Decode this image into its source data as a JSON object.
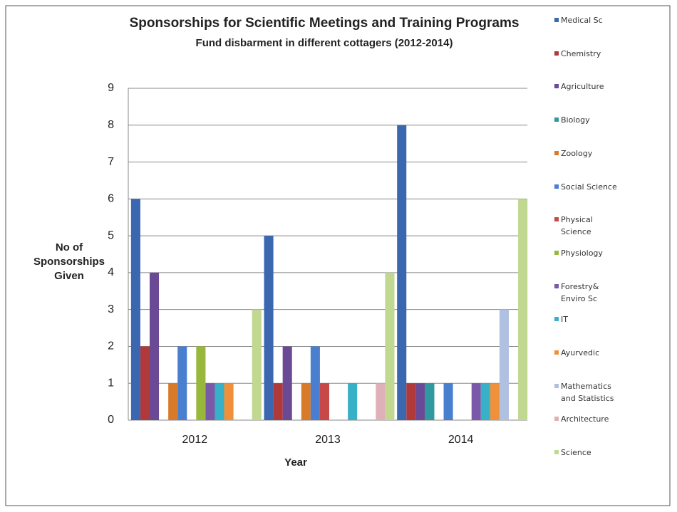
{
  "chart_data": {
    "type": "bar",
    "title": "Sponsorships for Scientific Meetings and Training Programs",
    "subtitle": "Fund disbarment  in different cottagers (2012-2014)",
    "x_label": "Year",
    "y_label": "No of Sponsorships Given",
    "categories": [
      "2012",
      "2013",
      "2014"
    ],
    "ylim": [
      0,
      9
    ],
    "yticks": [
      0,
      1,
      2,
      3,
      4,
      5,
      6,
      7,
      8,
      9
    ],
    "grid": true,
    "legend": "right",
    "series": [
      {
        "name": "Medical Sc",
        "color": "#3a67b0",
        "values": [
          6,
          5,
          8
        ]
      },
      {
        "name": "Chemistry",
        "color": "#b03a3a",
        "values": [
          2,
          1,
          1
        ]
      },
      {
        "name": "Agriculture",
        "color": "#6a4a94",
        "values": [
          4,
          2,
          1
        ]
      },
      {
        "name": "Biology",
        "color": "#2e9aa0",
        "values": [
          0,
          0,
          1
        ]
      },
      {
        "name": "Zoology",
        "color": "#d97a2a",
        "values": [
          1,
          1,
          0
        ]
      },
      {
        "name": "Social Science",
        "color": "#4a7fd0",
        "values": [
          2,
          2,
          1
        ]
      },
      {
        "name": "Physical Science",
        "color": "#c84848",
        "values": [
          0,
          1,
          0
        ]
      },
      {
        "name": "Physiology",
        "color": "#98b83c",
        "values": [
          2,
          0,
          0
        ]
      },
      {
        "name": "Forestry& Enviro Sc",
        "color": "#7a5aa8",
        "values": [
          1,
          0,
          1
        ]
      },
      {
        "name": "IT",
        "color": "#38b0c8",
        "values": [
          1,
          1,
          1
        ]
      },
      {
        "name": "Ayurvedic",
        "color": "#f0903a",
        "values": [
          1,
          0,
          1
        ]
      },
      {
        "name": "Mathematics and Statistics",
        "color": "#b0c0e0",
        "values": [
          0,
          0,
          3
        ]
      },
      {
        "name": "Architecture",
        "color": "#e0b0b8",
        "values": [
          0,
          1,
          0
        ]
      },
      {
        "name": "Science",
        "color": "#c0d890",
        "values": [
          3,
          4,
          6
        ]
      }
    ]
  }
}
